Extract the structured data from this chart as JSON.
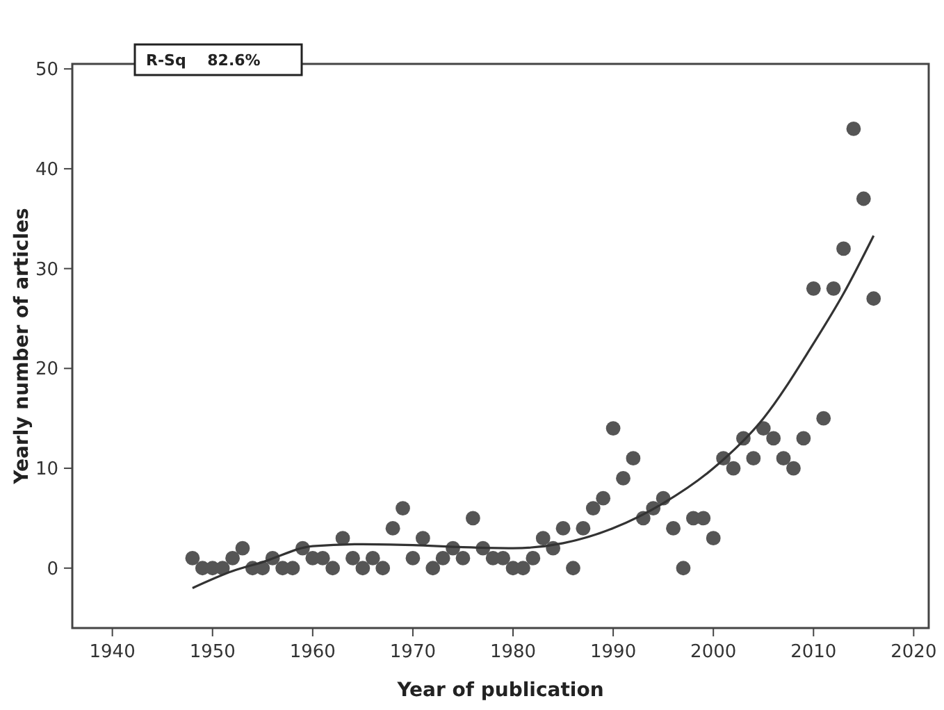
{
  "chart_data": {
    "type": "scatter",
    "xlabel": "Year of publication",
    "ylabel": "Yearly number of articles",
    "xlim": [
      1936,
      2021.5
    ],
    "ylim": [
      -6,
      50.5
    ],
    "xticks": [
      1940,
      1950,
      1960,
      1970,
      1980,
      1990,
      2000,
      2010,
      2020
    ],
    "yticks": [
      0,
      10,
      20,
      30,
      40,
      50
    ],
    "grid": false,
    "marker": "circle",
    "annotations": [
      "R-Sq    82.6%"
    ],
    "series": [
      {
        "color": "#555555",
        "x": [
          1948,
          1949,
          1950,
          1951,
          1952,
          1953,
          1954,
          1955,
          1956,
          1957,
          1958,
          1959,
          1960,
          1961,
          1962,
          1963,
          1964,
          1965,
          1966,
          1967,
          1968,
          1969,
          1970,
          1971,
          1972,
          1973,
          1974,
          1975,
          1976,
          1977,
          1978,
          1979,
          1980,
          1981,
          1982,
          1983,
          1984,
          1985,
          1986,
          1987,
          1988,
          1989,
          1990,
          1991,
          1992,
          1993,
          1994,
          1995,
          1996,
          1997,
          1998,
          1999,
          2000,
          2001,
          2002,
          2003,
          2004,
          2005,
          2006,
          2007,
          2008,
          2009,
          2010,
          2011,
          2012,
          2013,
          2014,
          2015,
          2016
        ],
        "values": [
          1,
          0,
          0,
          0,
          1,
          2,
          0,
          0,
          1,
          0,
          0,
          2,
          1,
          1,
          0,
          3,
          1,
          0,
          1,
          0,
          4,
          6,
          1,
          3,
          0,
          1,
          2,
          1,
          5,
          2,
          1,
          1,
          0,
          0,
          1,
          3,
          2,
          4,
          0,
          4,
          6,
          7,
          14,
          9,
          11,
          5,
          6,
          7,
          4,
          0,
          5,
          5,
          3,
          11,
          10,
          13,
          11,
          14,
          13,
          11,
          10,
          13,
          28,
          15,
          28,
          32,
          44,
          37,
          27
        ]
      },
      {
        "type": "line",
        "color": "#333333",
        "line_style": "solid",
        "marker": "none",
        "x": [
          1948,
          1952,
          1955,
          1960,
          1965,
          1970,
          1975,
          1980,
          1985,
          1990,
          1995,
          2000,
          2005,
          2010,
          2013,
          2016
        ],
        "values": [
          -2,
          -0.3,
          0.6,
          2.2,
          2.4,
          2.3,
          2.1,
          2.0,
          2.5,
          4,
          6.5,
          10,
          15,
          22.5,
          27.5,
          33.3
        ]
      }
    ]
  }
}
